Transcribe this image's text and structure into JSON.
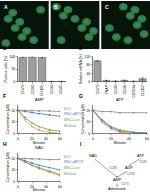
{
  "images": [
    {
      "panel": "A"
    },
    {
      "panel": "B"
    },
    {
      "panel": "C"
    }
  ],
  "chart_data": [
    {
      "panel": "D",
      "type": "bar",
      "categories": [
        "CD73",
        "CD90",
        "CD105",
        "CD34",
        "CD45"
      ],
      "values": [
        98,
        99,
        97,
        1,
        1
      ],
      "errors": [
        1,
        1,
        2,
        0.5,
        0.5
      ],
      "color": "#9e9e9e",
      "y_label": "Positive cells (%)",
      "ylim": [
        0,
        100
      ],
      "yticks": [
        0,
        50,
        100
      ]
    },
    {
      "panel": "E",
      "type": "bar",
      "categories": [
        "CD73",
        "TNAP",
        "CD39",
        "CD38",
        "CD203a",
        "CD157"
      ],
      "values": [
        100,
        5,
        3,
        6,
        2,
        14
      ],
      "errors": [
        3,
        2,
        1,
        2,
        1,
        6
      ],
      "color": "#9e9e9e",
      "y_label": "Relative mRNA (%)",
      "ylim": [
        0,
        120
      ],
      "yticks": [
        0,
        40,
        80,
        120
      ]
    },
    {
      "panel": "F",
      "type": "line",
      "title": "AMP",
      "x_label": "Minutes",
      "y_label": "Concentration (µM)",
      "x": [
        0,
        10,
        20,
        30,
        45,
        60
      ],
      "xlim": [
        0,
        60
      ],
      "xticks": [
        0,
        20,
        40,
        60
      ],
      "ylim": [
        0,
        25
      ],
      "yticks": [
        0,
        10,
        20
      ],
      "series": [
        {
          "name": "MSC",
          "color": "#f28c28",
          "values": [
            20,
            12,
            6,
            3,
            1,
            0
          ]
        },
        {
          "name": "MSC+APCP",
          "color": "#3a7fc1",
          "values": [
            20,
            19,
            18,
            17,
            16,
            15
          ]
        },
        {
          "name": "MSC+Lev",
          "color": "#5aa05a",
          "values": [
            20,
            14,
            9,
            6,
            3,
            2
          ]
        },
        {
          "name": "Medium",
          "color": "#888888",
          "values": [
            20,
            20,
            20,
            19.5,
            19.5,
            19
          ]
        }
      ]
    },
    {
      "panel": "G",
      "type": "line",
      "title": "ATP",
      "x_label": "Minutes",
      "y_label": "Concentration (µM)",
      "x": [
        0,
        10,
        20,
        30,
        45,
        60
      ],
      "xlim": [
        0,
        60
      ],
      "xticks": [
        0,
        20,
        40,
        60
      ],
      "ylim": [
        0,
        25
      ],
      "yticks": [
        0,
        10,
        20
      ],
      "series": [
        {
          "name": "MSC",
          "color": "#f28c28",
          "values": [
            20,
            10,
            4,
            1,
            0,
            0
          ]
        },
        {
          "name": "MSC+APCP",
          "color": "#3a7fc1",
          "values": [
            20,
            11,
            5,
            2,
            1,
            0
          ]
        },
        {
          "name": "MSC+Lev",
          "color": "#5aa05a",
          "values": [
            20,
            12,
            6,
            3,
            1,
            0.5
          ]
        },
        {
          "name": "Medium",
          "color": "#888888",
          "values": [
            20,
            19,
            19,
            18,
            18,
            18
          ]
        }
      ]
    },
    {
      "panel": "H",
      "type": "line",
      "title": "NAD",
      "x_label": "Minutes",
      "y_label": "Concentration (µM)",
      "x": [
        0,
        10,
        20,
        30,
        45,
        60
      ],
      "xlim": [
        0,
        60
      ],
      "xticks": [
        0,
        20,
        40,
        60
      ],
      "ylim": [
        0,
        25
      ],
      "yticks": [
        0,
        10,
        20
      ],
      "series": [
        {
          "name": "MSC",
          "color": "#f28c28",
          "values": [
            20,
            17,
            14,
            11,
            8,
            5
          ]
        },
        {
          "name": "MSC+APCP",
          "color": "#3a7fc1",
          "values": [
            20,
            18,
            16,
            14,
            12,
            10
          ]
        },
        {
          "name": "MSC+Lev",
          "color": "#5aa05a",
          "values": [
            20,
            17,
            14,
            12,
            9,
            6
          ]
        },
        {
          "name": "Medium",
          "color": "#888888",
          "values": [
            20,
            20,
            19.5,
            19.5,
            19,
            19
          ]
        }
      ]
    }
  ],
  "diagram": {
    "panel": "I",
    "nodes": [
      "NAD",
      "ATP",
      "ADP",
      "AMP",
      "Adenosine"
    ],
    "edges": [
      [
        "NAD",
        "AMP",
        "CD38"
      ],
      [
        "ATP",
        "ADP",
        "CD39"
      ],
      [
        "ADP",
        "AMP",
        "CD39"
      ],
      [
        "AMP",
        "Adenosine",
        "CD73"
      ]
    ]
  }
}
